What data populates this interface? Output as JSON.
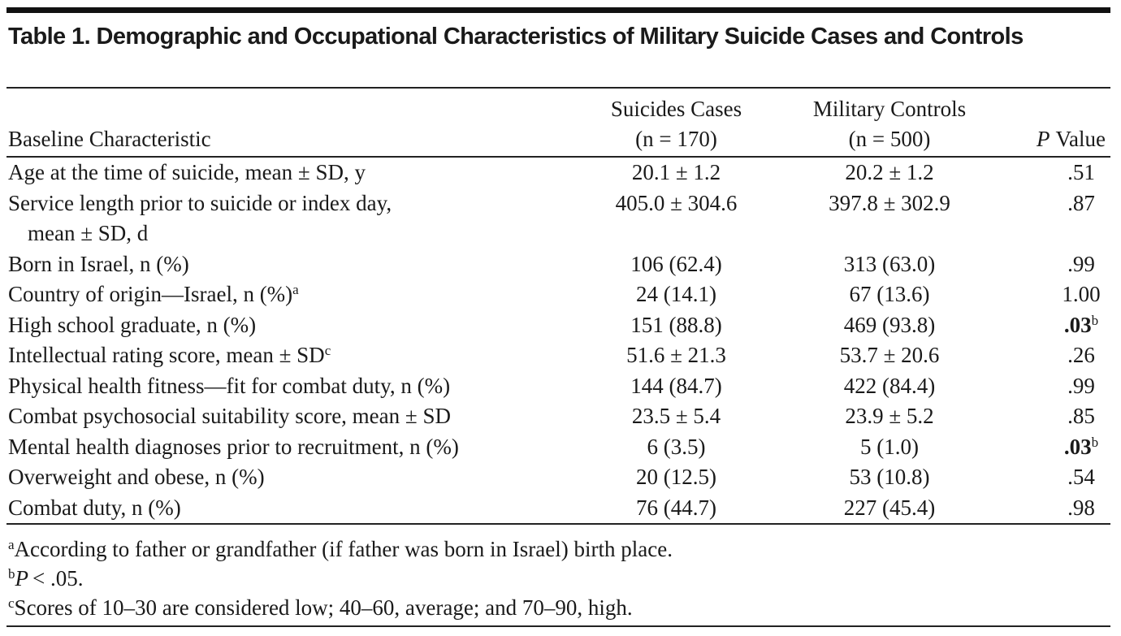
{
  "title": "Table 1. Demographic and Occupational Characteristics of Military Suicide Cases and Controls",
  "table": {
    "header": [
      "Baseline Characteristic",
      {
        "lines": [
          "Suicides Cases",
          "(n = 170)"
        ]
      },
      {
        "lines": [
          "Military Controls",
          "(n = 500)"
        ]
      },
      {
        "italic": "P",
        "text": "Value"
      }
    ],
    "rows": [
      [
        "Age at the time of suicide, mean ± SD, y",
        "20.1 ± 1.2",
        "20.2 ± 1.2",
        ".51"
      ],
      [
        {
          "lines": [
            "Service length prior to suicide or index day,",
            "mean ± SD,  d"
          ]
        },
        "405.0 ± 304.6",
        "397.8 ± 302.9",
        ".87"
      ],
      [
        "Born in Israel, n (%)",
        "106 (62.4)",
        "313 (63.0)",
        ".99"
      ],
      [
        {
          "text": "Country of origin—Israel, n (%)",
          "sup": "a"
        },
        "24 (14.1)",
        "67 (13.6)",
        "1.00"
      ],
      [
        "High school graduate, n (%)",
        "151 (88.8)",
        "469 (93.8)",
        {
          "text": ".03",
          "sup": "b",
          "bold": true
        }
      ],
      [
        {
          "text": "Intellectual rating score, mean ± SD",
          "sup": "c"
        },
        "51.6 ± 21.3",
        "53.7 ± 20.6",
        ".26"
      ],
      [
        "Physical health fitness—fit for combat duty, n (%)",
        "144 (84.7)",
        "422 (84.4)",
        ".99"
      ],
      [
        "Combat psychosocial suitability score, mean ± SD",
        "23.5 ± 5.4",
        "23.9 ± 5.2",
        ".85"
      ],
      [
        "Mental health diagnoses prior to recruitment, n (%)",
        "6 (3.5)",
        "5 (1.0)",
        {
          "text": ".03",
          "sup": "b",
          "bold": true
        }
      ],
      [
        "Overweight and obese, n (%)",
        "20 (12.5)",
        "53 (10.8)",
        ".54"
      ],
      [
        "Combat duty, n (%)",
        "76 (44.7)",
        "227 (45.4)",
        ".98"
      ]
    ]
  },
  "footnotes": [
    {
      "sup": "a",
      "text": "According to father or grandfather (if father was born in Israel) birth place."
    },
    {
      "sup": "b",
      "italic": "P",
      "text": "< .05."
    },
    {
      "sup": "c",
      "text": "Scores of 10–30 are considered low; 40–60, average; and 70–90, high."
    }
  ]
}
